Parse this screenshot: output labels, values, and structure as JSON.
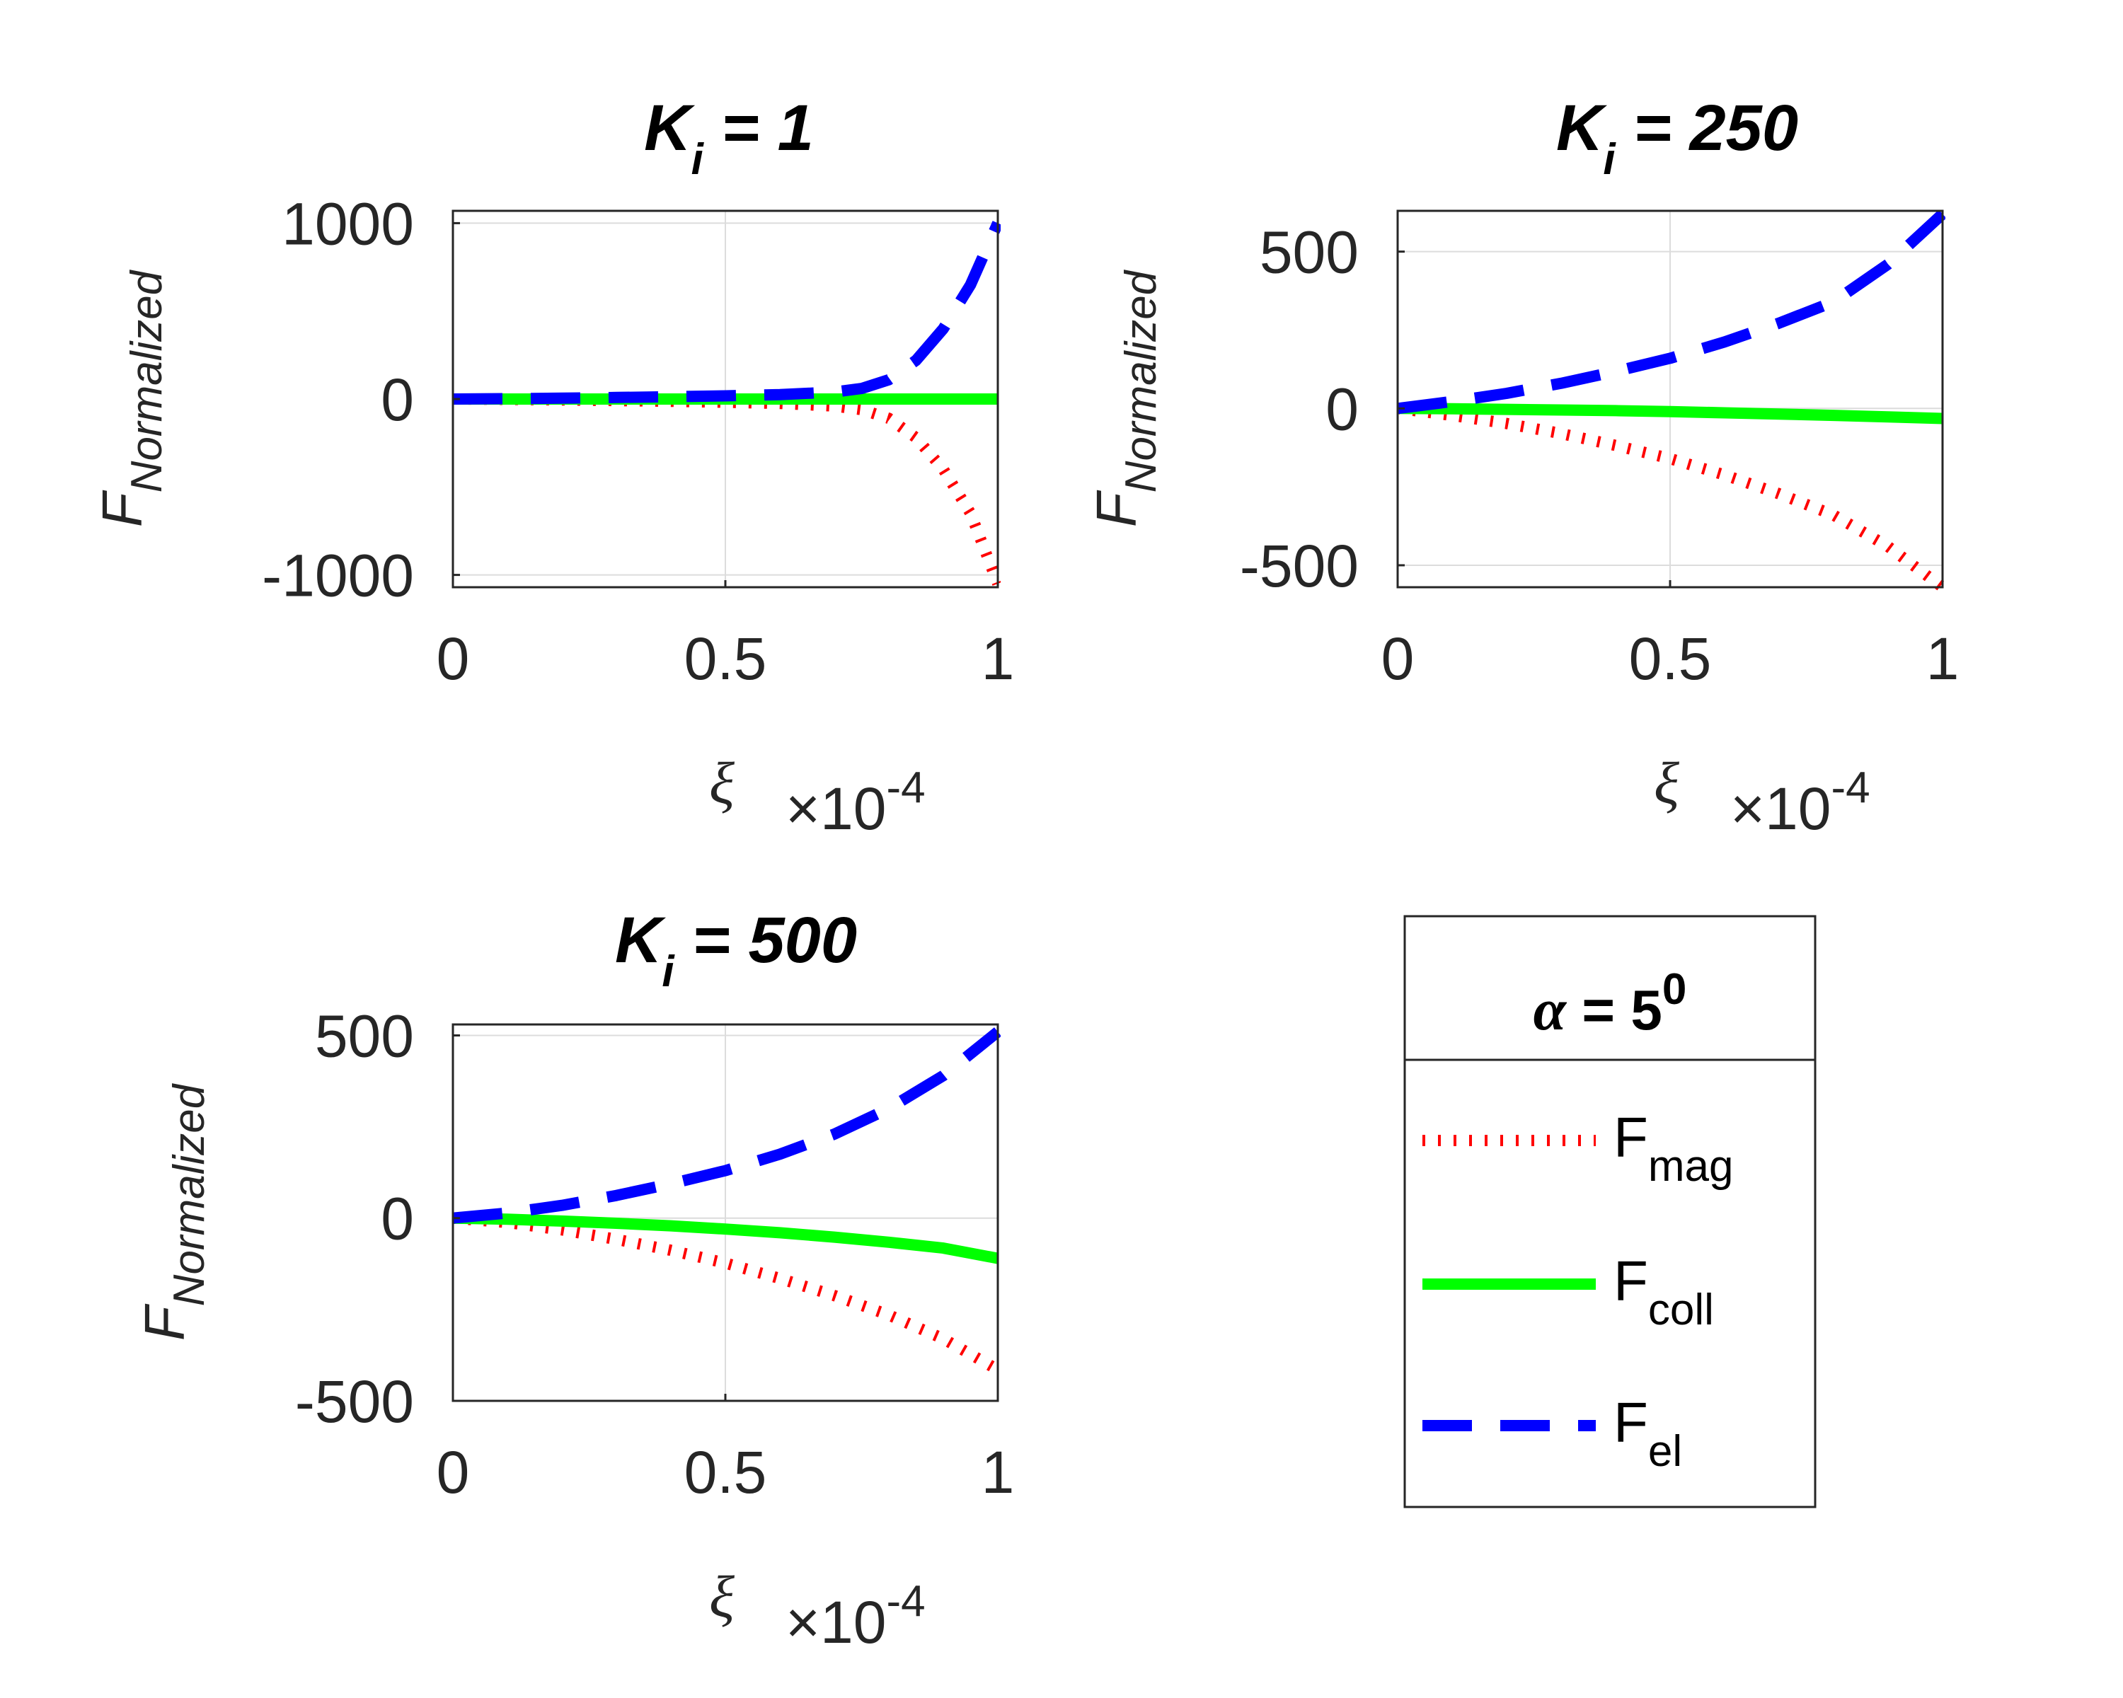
{
  "colors": {
    "F_mag": "#ff0000",
    "F_coll": "#00ff00",
    "F_el": "#0000ff",
    "axes": "#262626",
    "grid": "#dcdcdc"
  },
  "legend": {
    "title_symbol": "α",
    "title_rest": " = 5",
    "title_sup": "0",
    "entries": [
      {
        "base": "F",
        "sub": "mag",
        "series": "F_mag",
        "style": "dotted"
      },
      {
        "base": "F",
        "sub": "coll",
        "series": "F_coll",
        "style": "solid"
      },
      {
        "base": "F",
        "sub": "el",
        "series": "F_el",
        "style": "dashed"
      }
    ]
  },
  "chart_data": [
    {
      "type": "line",
      "title": {
        "base": "K",
        "sub": "i",
        "rest": " = 1"
      },
      "ylabel": {
        "base": "F",
        "sub": "Normalized"
      },
      "xlabel": "ξ",
      "x_multiplier": {
        "base": "×10",
        "sup": "-4"
      },
      "xlim": [
        0,
        1
      ],
      "ylim": [
        -1070,
        1070
      ],
      "xticks": [
        0,
        0.5,
        1
      ],
      "xtick_labels": [
        "0",
        "0.5",
        "1"
      ],
      "yticks": [
        -1000,
        0,
        1000
      ],
      "ytick_labels": [
        "-1000",
        "0",
        "1000"
      ],
      "grid": true,
      "x": [
        0,
        0.1,
        0.2,
        0.3,
        0.4,
        0.5,
        0.6,
        0.7,
        0.75,
        0.8,
        0.85,
        0.9,
        0.95,
        1.0
      ],
      "series": [
        {
          "key": "F_mag",
          "values": [
            0,
            -2,
            -5,
            -9,
            -13,
            -18,
            -25,
            -40,
            -60,
            -110,
            -220,
            -400,
            -650,
            -1050
          ]
        },
        {
          "key": "F_coll",
          "values": [
            0,
            0,
            0,
            0,
            0,
            0,
            0,
            0,
            0,
            0,
            0,
            0,
            0,
            0
          ]
        },
        {
          "key": "F_el",
          "values": [
            0,
            2,
            5,
            9,
            13,
            18,
            25,
            40,
            60,
            110,
            220,
            400,
            650,
            1000
          ]
        }
      ]
    },
    {
      "type": "line",
      "title": {
        "base": "K",
        "sub": "i",
        "rest": " = 250"
      },
      "ylabel": {
        "base": "F",
        "sub": "Normalized"
      },
      "xlabel": "ξ",
      "x_multiplier": {
        "base": "×10",
        "sup": "-4"
      },
      "xlim": [
        0,
        1
      ],
      "ylim": [
        -570,
        630
      ],
      "xticks": [
        0,
        0.5,
        1
      ],
      "xtick_labels": [
        "0",
        "0.5",
        "1"
      ],
      "yticks": [
        -500,
        0,
        500
      ],
      "ytick_labels": [
        "-500",
        "0",
        "500"
      ],
      "grid": true,
      "x": [
        0,
        0.1,
        0.2,
        0.3,
        0.4,
        0.5,
        0.6,
        0.7,
        0.8,
        0.9,
        1.0
      ],
      "series": [
        {
          "key": "F_mag",
          "values": [
            0,
            -22,
            -48,
            -80,
            -118,
            -160,
            -212,
            -272,
            -340,
            -440,
            -570
          ]
        },
        {
          "key": "F_coll",
          "values": [
            0,
            -1,
            -3,
            -5,
            -7,
            -10,
            -14,
            -18,
            -22,
            -27,
            -32
          ]
        },
        {
          "key": "F_el",
          "values": [
            0,
            22,
            48,
            80,
            118,
            160,
            212,
            272,
            340,
            460,
            620
          ]
        }
      ]
    },
    {
      "type": "line",
      "title": {
        "base": "K",
        "sub": "i",
        "rest": " = 500"
      },
      "ylabel": {
        "base": "F",
        "sub": "Normalized"
      },
      "xlabel": "ξ",
      "x_multiplier": {
        "base": "×10",
        "sup": "-4"
      },
      "xlim": [
        0,
        1
      ],
      "ylim": [
        -500,
        530
      ],
      "xticks": [
        0,
        0.5,
        1
      ],
      "xtick_labels": [
        "0",
        "0.5",
        "1"
      ],
      "yticks": [
        -500,
        0,
        500
      ],
      "ytick_labels": [
        "-500",
        "0",
        "500"
      ],
      "grid": true,
      "x": [
        0,
        0.1,
        0.2,
        0.3,
        0.4,
        0.5,
        0.6,
        0.7,
        0.8,
        0.9,
        1.0
      ],
      "series": [
        {
          "key": "F_mag",
          "values": [
            0,
            -12,
            -32,
            -58,
            -88,
            -123,
            -165,
            -212,
            -265,
            -330,
            -415
          ]
        },
        {
          "key": "F_coll",
          "values": [
            0,
            -3,
            -8,
            -14,
            -21,
            -30,
            -40,
            -52,
            -66,
            -82,
            -110
          ]
        },
        {
          "key": "F_el",
          "values": [
            0,
            14,
            35,
            62,
            94,
            130,
            175,
            230,
            300,
            390,
            510
          ]
        }
      ]
    }
  ]
}
